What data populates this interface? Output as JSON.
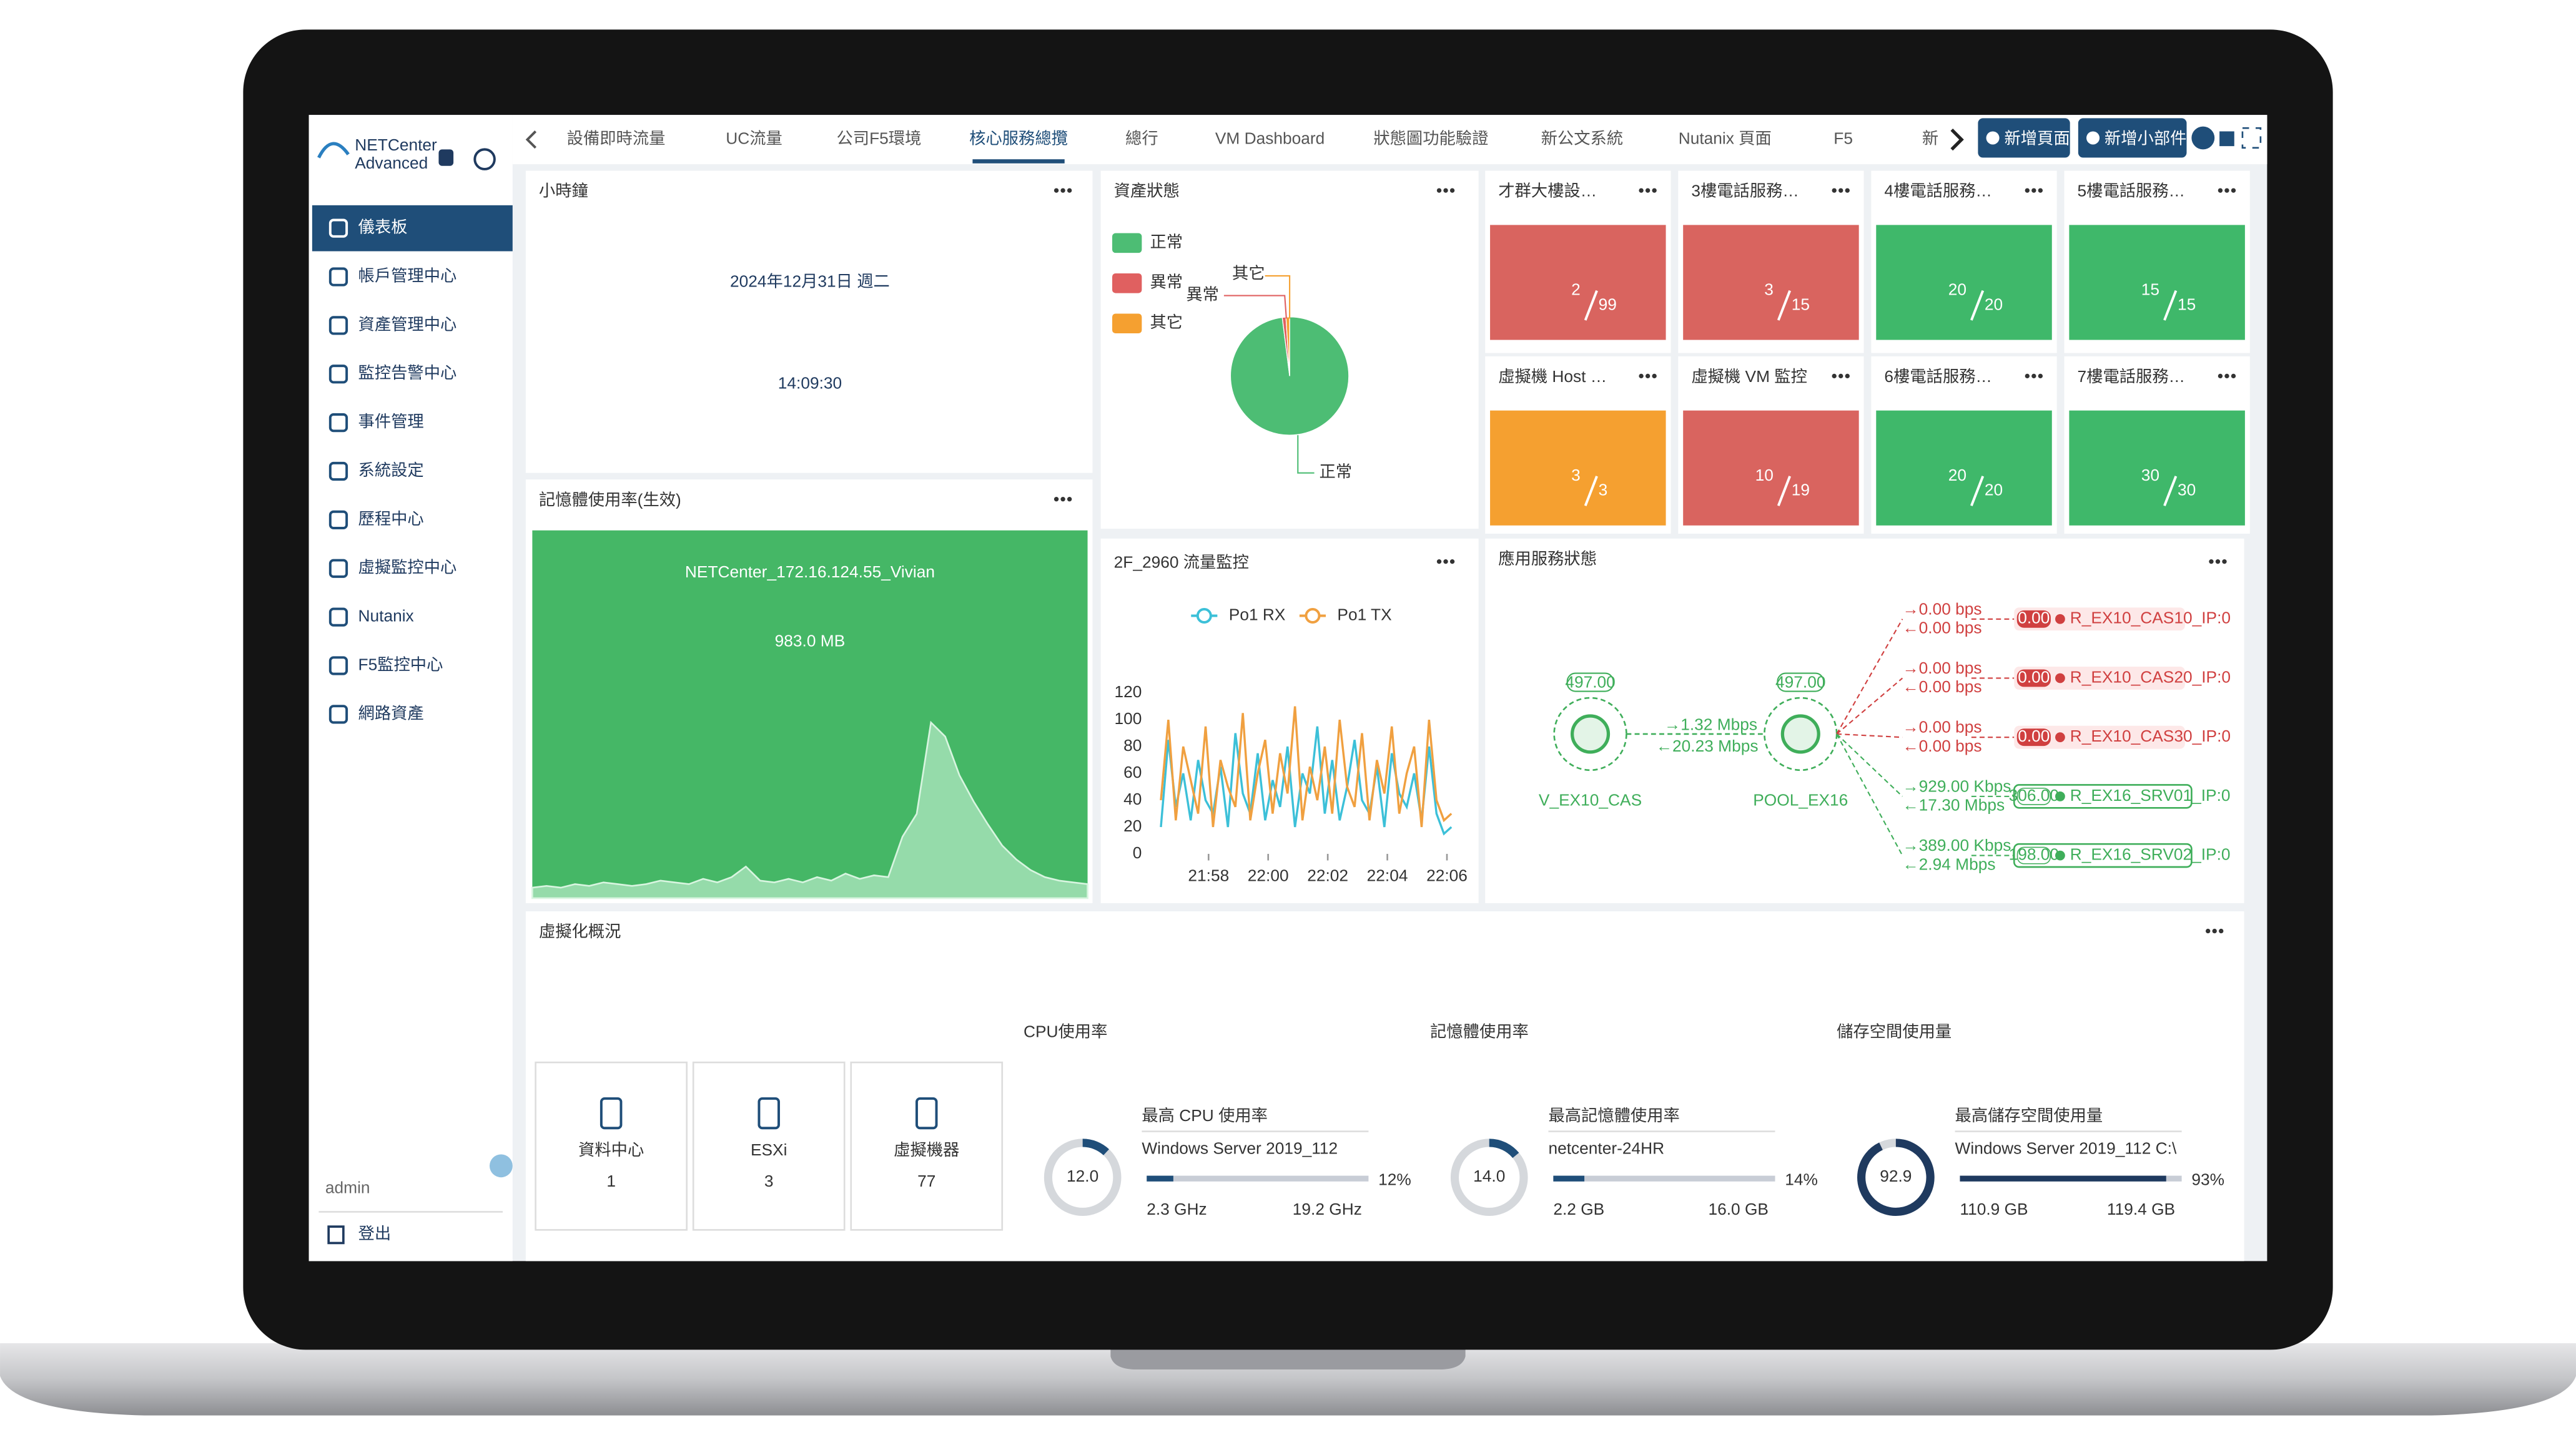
{
  "sidebar": {
    "brand": [
      "NETCenter",
      "Advanced"
    ],
    "menu": [
      "儀表板",
      "帳戶管理中心",
      "資產管理中心",
      "監控告警中心",
      "事件管理",
      "系統設定",
      "歷程中心",
      "虛擬監控中心",
      "Nutanix",
      "F5監控中心",
      "網路資產"
    ],
    "active": 0,
    "user": "admin",
    "logout": "登出"
  },
  "tabs": [
    "設備即時流量",
    "UC流量",
    "公司F5環境",
    "核心服務總攬",
    "總行",
    "VM Dashboard",
    "狀態圖功能驗證",
    "新公文系統",
    "Nutanix 頁面",
    "F5",
    "新"
  ],
  "active_tab": 3,
  "buttons": [
    "新增頁面",
    "新增小部件"
  ],
  "clock": {
    "title": "小時鐘",
    "date": "2024年12月31日 週二",
    "time": "14:09:30"
  },
  "chart_data": [
    {
      "type": "area",
      "title": "記憶體使用率(生效)",
      "subtitle": "NETCenter_172.16.124.55_Vivian",
      "annotation": "983.0 MB",
      "color": "#a3e2b6",
      "ylim": [
        0,
        100
      ],
      "values": [
        6,
        7,
        6,
        8,
        7,
        9,
        8,
        7,
        8,
        10,
        9,
        8,
        11,
        9,
        12,
        18,
        10,
        9,
        11,
        9,
        12,
        10,
        14,
        11,
        13,
        12,
        35,
        48,
        100,
        92,
        70,
        55,
        42,
        30,
        22,
        16,
        12,
        10,
        9,
        8
      ]
    },
    {
      "type": "pie",
      "title": "資產狀態",
      "categories": [
        "正常",
        "異常",
        "其它"
      ],
      "values": [
        98,
        1,
        1
      ],
      "colors": [
        "#4dbd74",
        "#e06060",
        "#f5a030"
      ]
    },
    {
      "type": "line",
      "title": "2F_2960 流量監控",
      "xlim": [
        1316.2,
        1326.4
      ],
      "xticks": [
        {
          "value": 1318,
          "label": "21:58"
        },
        {
          "value": 1320,
          "label": "22:00"
        },
        {
          "value": 1322,
          "label": "22:02"
        },
        {
          "value": 1324,
          "label": "22:04"
        },
        {
          "value": 1326,
          "label": "22:06"
        }
      ],
      "ylim": [
        0,
        120
      ],
      "yticks": [
        0,
        20,
        40,
        60,
        80,
        100,
        120
      ],
      "x": [
        1316.4,
        1316.65,
        1316.9,
        1317.15,
        1317.4,
        1317.65,
        1317.9,
        1318.15,
        1318.4,
        1318.65,
        1318.9,
        1319.15,
        1319.4,
        1319.65,
        1319.9,
        1320.15,
        1320.4,
        1320.65,
        1320.9,
        1321.15,
        1321.4,
        1321.65,
        1321.9,
        1322.15,
        1322.4,
        1322.65,
        1322.9,
        1323.15,
        1323.4,
        1323.65,
        1323.9,
        1324.15,
        1324.4,
        1324.65,
        1324.9,
        1325.15,
        1325.4,
        1325.65,
        1325.9,
        1326.15
      ],
      "series": [
        {
          "name": "Po1 RX",
          "color": "#3cc0d8",
          "values": [
            20,
            85,
            35,
            60,
            25,
            70,
            40,
            30,
            65,
            20,
            90,
            45,
            30,
            75,
            25,
            55,
            35,
            80,
            20,
            60,
            45,
            95,
            30,
            70,
            25,
            50,
            85,
            40,
            30,
            65,
            20,
            75,
            45,
            35,
            60,
            25,
            80,
            30,
            15,
            20
          ]
        },
        {
          "name": "Po1 TX",
          "color": "#f0a040",
          "values": [
            40,
            100,
            25,
            80,
            55,
            30,
            95,
            20,
            70,
            50,
            35,
            105,
            25,
            60,
            85,
            30,
            75,
            45,
            110,
            25,
            65,
            40,
            80,
            30,
            100,
            50,
            35,
            90,
            25,
            70,
            45,
            95,
            30,
            60,
            80,
            20,
            100,
            40,
            25,
            30
          ]
        }
      ]
    }
  ],
  "tiles": [
    {
      "title": "才群大樓設…",
      "value": 2,
      "total": 99,
      "color": "#d9645f"
    },
    {
      "title": "3樓電話服務…",
      "value": 3,
      "total": 15,
      "color": "#d9645f"
    },
    {
      "title": "4樓電話服務…",
      "value": 20,
      "total": 20,
      "color": "#3fb86a"
    },
    {
      "title": "5樓電話服務…",
      "value": 15,
      "total": 15,
      "color": "#3fb86a"
    },
    {
      "title": "虛擬機 Host …",
      "value": 3,
      "total": 3,
      "color": "#f5a030"
    },
    {
      "title": "虛擬機 VM 監控",
      "value": 10,
      "total": 19,
      "color": "#d9645f"
    },
    {
      "title": "6樓電話服務…",
      "value": 20,
      "total": 20,
      "color": "#3fb86a"
    },
    {
      "title": "7樓電話服務…",
      "value": 30,
      "total": 30,
      "color": "#3fb86a"
    }
  ],
  "topology": {
    "title": "應用服務狀態",
    "source": {
      "value": "497.00",
      "label": "V_EX10_CAS"
    },
    "link": {
      "out": "→1.32 Mbps",
      "in": "←20.23 Mbps"
    },
    "pool": {
      "value": "497.00",
      "label": "POOL_EX16"
    },
    "targets": [
      {
        "out": "→0.00 bps",
        "in": "←0.00 bps",
        "value": "0.00",
        "label": "R_EX10_CAS10_IP:0",
        "status": "down"
      },
      {
        "out": "→0.00 bps",
        "in": "←0.00 bps",
        "value": "0.00",
        "label": "R_EX10_CAS20_IP:0",
        "status": "down"
      },
      {
        "out": "→0.00 bps",
        "in": "←0.00 bps",
        "value": "0.00",
        "label": "R_EX10_CAS30_IP:0",
        "status": "down"
      },
      {
        "out": "→929.00 Kbps",
        "in": "←17.30 Mbps",
        "value": "306.00",
        "label": "R_EX16_SRV01_IP:0",
        "status": "up"
      },
      {
        "out": "→389.00 Kbps",
        "in": "←2.94 Mbps",
        "value": "198.00",
        "label": "R_EX16_SRV02_IP:0",
        "status": "up"
      }
    ]
  },
  "virtualization": {
    "title": "虛擬化概況",
    "counts": [
      {
        "label": "資料中心",
        "value": 1
      },
      {
        "label": "ESXi",
        "value": 3
      },
      {
        "label": "虛擬機器",
        "value": 77
      }
    ],
    "metrics": [
      {
        "title": "CPU使用率",
        "gauge": {
          "value": 12,
          "label": "12.0"
        },
        "subtitle": "最高 CPU 使用率",
        "name": "Windows Server 2019_112",
        "percent": {
          "value": 12,
          "label": "12%"
        },
        "used": "2.3 GHz",
        "total": "19.2 GHz",
        "color": "#1f4e79"
      },
      {
        "title": "記憶體使用率",
        "gauge": {
          "value": 14,
          "label": "14.0"
        },
        "subtitle": "最高記憶體使用率",
        "name": "netcenter-24HR",
        "percent": {
          "value": 14,
          "label": "14%"
        },
        "used": "2.2 GB",
        "total": "16.0 GB",
        "color": "#1f4e79"
      },
      {
        "title": "儲存空間使用量",
        "gauge": 92.9,
        "subtitle": "最高儲存空間使用量",
        "name": "Windows Server 2019_112 C:\\",
        "percent": {
          "value": 93,
          "label": "93%"
        },
        "used": "110.9 GB",
        "total": "119.4 GB",
        "color": "#1f3a5f"
      }
    ]
  }
}
